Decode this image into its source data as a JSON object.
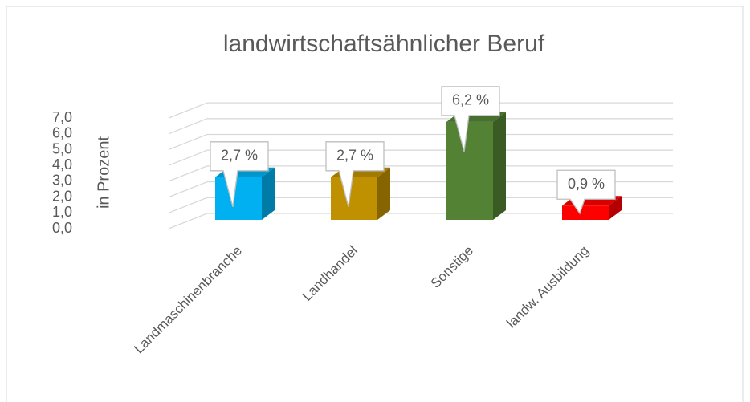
{
  "chart_data": {
    "type": "bar3d",
    "title": "landwirtschaftsähnlicher Beruf",
    "y_label": "in Prozent",
    "categories": [
      "Landmaschinenbranche",
      "Landhandel",
      "Sonstige",
      "landw. Ausbildung"
    ],
    "values": [
      2.7,
      2.7,
      6.2,
      0.9
    ],
    "value_labels": [
      "2,7 %",
      "2,7 %",
      "6,2 %",
      "0,9 %"
    ],
    "colors": [
      "#00b0f0",
      "#bf9000",
      "#548235",
      "#ff0000"
    ],
    "ylim": [
      0,
      7
    ],
    "yticks": [
      {
        "value": 0,
        "label": "0,0"
      },
      {
        "value": 1,
        "label": "1,0"
      },
      {
        "value": 2,
        "label": "2,0"
      },
      {
        "value": 3,
        "label": "3,0"
      },
      {
        "value": 4,
        "label": "4,0"
      },
      {
        "value": 5,
        "label": "5,0"
      },
      {
        "value": 6,
        "label": "6,0"
      },
      {
        "value": 7,
        "label": "7,0"
      }
    ],
    "grid": true
  }
}
